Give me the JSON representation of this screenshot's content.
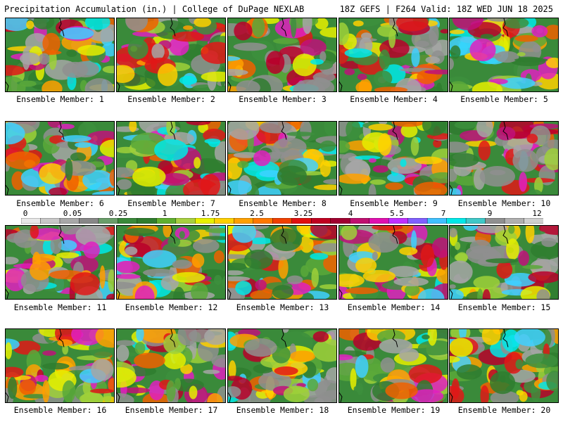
{
  "header": {
    "title_left": "Precipitation Accumulation (in.) | College of DuPage NEXLAB",
    "title_right": "18Z GEFS | F264 Valid: 18Z WED JUN 18 2025"
  },
  "legend": {
    "ticks": [
      "0",
      "0.05",
      "0.25",
      "1",
      "1.75",
      "2.5",
      "3.25",
      "4",
      "5.5",
      "7",
      "9",
      "12"
    ],
    "colors": [
      "#e8e8e8",
      "#c8c8c8",
      "#a8a8a8",
      "#888888",
      "#6a9e6a",
      "#3a8a3a",
      "#2f7d2f",
      "#60b030",
      "#a8d040",
      "#e8f000",
      "#ffd000",
      "#ffa000",
      "#ff7800",
      "#f04000",
      "#e01010",
      "#c00020",
      "#a00030",
      "#c01070",
      "#e010b0",
      "#c030ff",
      "#8060ff",
      "#40c0ff",
      "#00e8e8",
      "#40c8c8",
      "#909090",
      "#b0b0b0",
      "#d0d0d0"
    ]
  },
  "panels": [
    {
      "label": "Ensemble Member: 1"
    },
    {
      "label": "Ensemble Member: 2"
    },
    {
      "label": "Ensemble Member: 3"
    },
    {
      "label": "Ensemble Member: 4"
    },
    {
      "label": "Ensemble Member: 5"
    },
    {
      "label": "Ensemble Member: 6"
    },
    {
      "label": "Ensemble Member: 7"
    },
    {
      "label": "Ensemble Member: 8"
    },
    {
      "label": "Ensemble Member: 9"
    },
    {
      "label": "Ensemble Member: 10"
    },
    {
      "label": "Ensemble Member: 11"
    },
    {
      "label": "Ensemble Member: 12"
    },
    {
      "label": "Ensemble Member: 13"
    },
    {
      "label": "Ensemble Member: 14"
    },
    {
      "label": "Ensemble Member: 15"
    },
    {
      "label": "Ensemble Member: 16"
    },
    {
      "label": "Ensemble Member: 17"
    },
    {
      "label": "Ensemble Member: 18"
    },
    {
      "label": "Ensemble Member: 19"
    },
    {
      "label": "Ensemble Member: 20"
    }
  ]
}
